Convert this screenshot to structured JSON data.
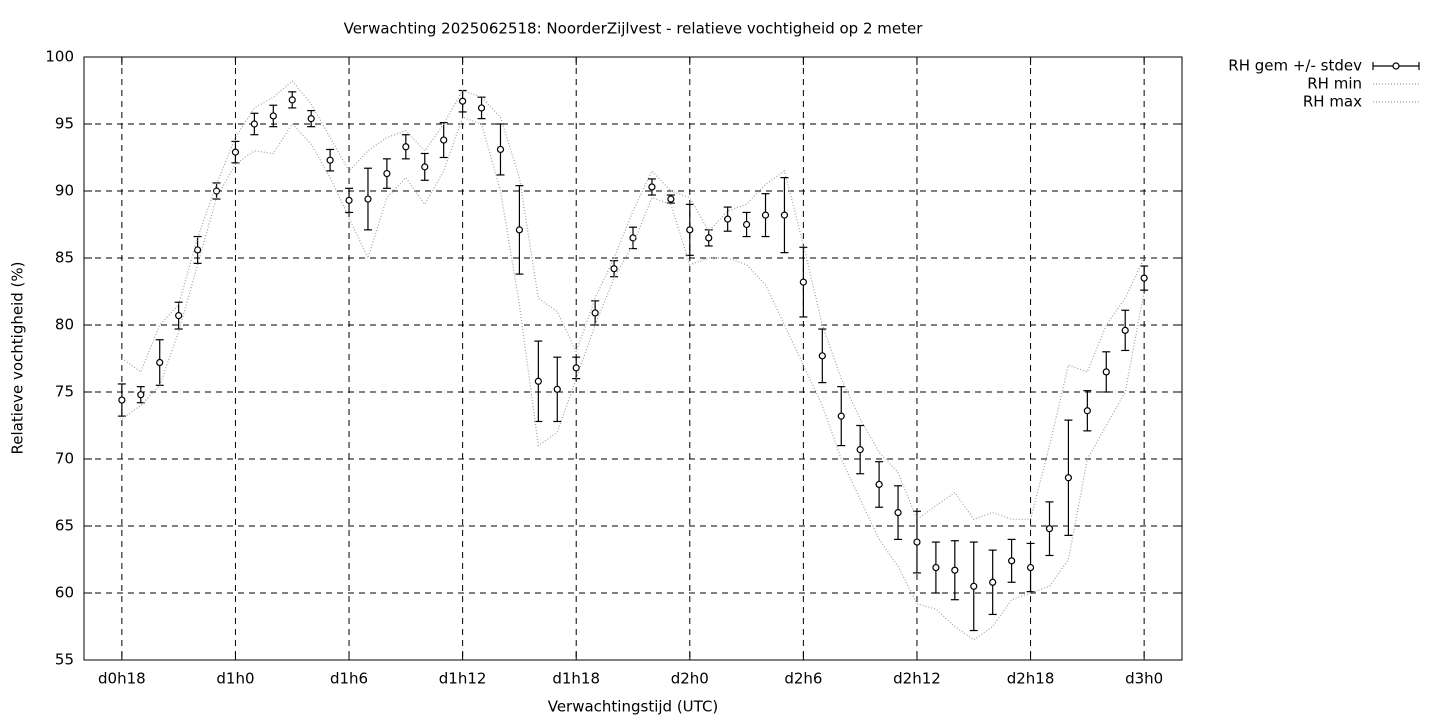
{
  "chart_data": {
    "type": "errorbar",
    "title": "Verwachting 2025062518: NoorderZijlvest - relatieve vochtigheid op 2 meter",
    "x_label": "Verwachtingstijd (UTC)",
    "y_label": "Relatieve vochtigheid (%)",
    "x": [
      18,
      19,
      20,
      21,
      22,
      23,
      24,
      25,
      26,
      27,
      28,
      29,
      30,
      31,
      32,
      33,
      34,
      35,
      36,
      37,
      38,
      39,
      40,
      41,
      42,
      43,
      44,
      45,
      46,
      47,
      48,
      49,
      50,
      51,
      52,
      53,
      54,
      55,
      56,
      57,
      58,
      59,
      60,
      61,
      62,
      63,
      64,
      65,
      66,
      67,
      68,
      69,
      70,
      71,
      72
    ],
    "series": [
      {
        "name": "RH gem +/- stdev",
        "color": "#000000",
        "style": "errorbar",
        "values": [
          74.4,
          74.8,
          77.2,
          80.7,
          85.6,
          90.0,
          92.9,
          95.0,
          95.6,
          96.8,
          95.4,
          92.3,
          89.3,
          89.4,
          91.3,
          93.3,
          91.8,
          93.8,
          96.7,
          96.2,
          93.1,
          87.1,
          75.8,
          75.2,
          76.8,
          80.9,
          84.2,
          86.5,
          90.3,
          89.4,
          87.1,
          86.5,
          87.9,
          87.5,
          88.2,
          88.2,
          83.2,
          77.7,
          73.2,
          70.7,
          68.1,
          66.0,
          63.8,
          61.9,
          61.7,
          60.5,
          60.8,
          62.4,
          61.9,
          64.8,
          68.6,
          73.6,
          76.5,
          79.6,
          83.5
        ],
        "errors": [
          1.2,
          0.6,
          1.7,
          1.0,
          1.0,
          0.6,
          0.8,
          0.8,
          0.8,
          0.6,
          0.6,
          0.8,
          0.9,
          2.3,
          1.1,
          0.9,
          1.0,
          1.3,
          0.8,
          0.8,
          1.9,
          3.3,
          3.0,
          2.4,
          0.8,
          0.9,
          0.6,
          0.8,
          0.6,
          0.3,
          1.9,
          0.6,
          0.9,
          0.9,
          1.6,
          2.8,
          2.6,
          2.0,
          2.2,
          1.8,
          1.7,
          2.0,
          2.3,
          1.9,
          2.2,
          3.3,
          2.4,
          1.6,
          1.8,
          2.0,
          4.3,
          1.5,
          1.5,
          1.5,
          0.9
        ]
      },
      {
        "name": "RH min",
        "color": "#a0a0a0",
        "style": "dotted",
        "values": [
          73,
          74,
          75.5,
          79.5,
          84.5,
          89.5,
          92,
          93,
          92.8,
          95,
          93.5,
          91,
          88,
          85,
          89.5,
          91,
          89,
          91.5,
          95.5,
          95,
          90,
          81.5,
          71,
          72,
          76,
          80,
          83.5,
          86,
          89.5,
          89,
          84.5,
          85,
          85,
          84.5,
          83,
          80,
          77,
          74,
          70,
          67,
          64,
          62,
          59.2,
          58.8,
          57.5,
          56.5,
          57.5,
          59.5,
          60,
          60.5,
          62.5,
          70,
          72.5,
          75,
          82.5
        ]
      },
      {
        "name": "RH max",
        "color": "#a0a0a0",
        "style": "dotted",
        "values": [
          77.5,
          76.5,
          80,
          81.5,
          86.5,
          90.5,
          94,
          96.2,
          97,
          98.2,
          96.5,
          94,
          91.5,
          93,
          94,
          94.5,
          93,
          95,
          97.5,
          97,
          95.5,
          91,
          82,
          81,
          78,
          82,
          85,
          88.5,
          91.5,
          90,
          89.5,
          87,
          88.5,
          89,
          90.5,
          91.5,
          86,
          80,
          76,
          73,
          70.5,
          69,
          65.5,
          66.5,
          67.5,
          65.5,
          66,
          65.5,
          65.5,
          71,
          77,
          76.5,
          80,
          82,
          85
        ]
      }
    ],
    "xlim": [
      16,
      74
    ],
    "xticks": [
      {
        "value": 18,
        "label": "d0h18"
      },
      {
        "value": 24,
        "label": "d1h0"
      },
      {
        "value": 30,
        "label": "d1h6"
      },
      {
        "value": 36,
        "label": "d1h12"
      },
      {
        "value": 42,
        "label": "d1h18"
      },
      {
        "value": 48,
        "label": "d2h0"
      },
      {
        "value": 54,
        "label": "d2h6"
      },
      {
        "value": 60,
        "label": "d2h12"
      },
      {
        "value": 66,
        "label": "d2h18"
      },
      {
        "value": 72,
        "label": "d3h0"
      }
    ],
    "ylim": [
      55,
      100
    ],
    "yticks": [
      55,
      60,
      65,
      70,
      75,
      80,
      85,
      90,
      95,
      100
    ],
    "grid": true,
    "legend": "outside-top-right"
  }
}
